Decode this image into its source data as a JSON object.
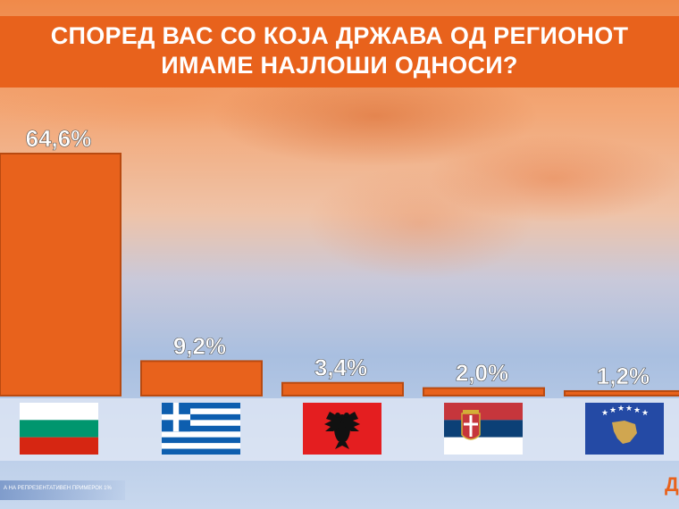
{
  "title": {
    "line1": "СПОРЕД ВАС СО КОЈА ДРЖАВА ОД РЕГИОНОТ",
    "line2": "ИМАМЕ НАЈЛОШИ ОДНОСИ?"
  },
  "chart_data": {
    "type": "bar",
    "categories": [
      "bulgaria-flag",
      "greece-flag",
      "albania-flag",
      "serbia-flag",
      "kosovo-flag"
    ],
    "values": [
      64.6,
      9.2,
      3.4,
      2.0,
      1.2
    ],
    "value_labels": [
      "64,6%",
      "9,2%",
      "3,4%",
      "2,0%",
      "1,2%"
    ],
    "title": "СПОРЕД ВАС СО КОЈА ДРЖАВА ОД РЕГИОНОТ ИМАМЕ НАЈЛОШИ ОДНОСИ?",
    "xlabel": "",
    "ylabel": "",
    "ylim": [
      0,
      64.6
    ],
    "grid": false,
    "bar_color": "#e8621c",
    "bar_border": "#b94a10"
  },
  "colors": {
    "accent": "#e8621c",
    "text": "#ffffff"
  },
  "footer": {
    "note": "А НА РЕПРЕЗЕНТАТИВЕН ПРИМЕРОК 1%",
    "logo": "Д"
  }
}
